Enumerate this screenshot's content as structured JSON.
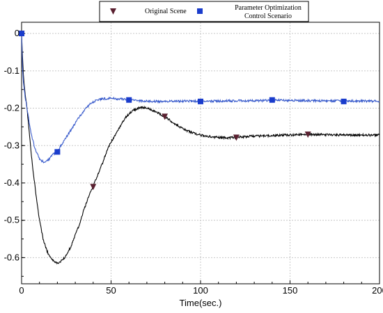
{
  "chart_data": {
    "type": "line",
    "title": "",
    "xlabel": "Time(sec.)",
    "ylabel": "",
    "xlim": [
      0,
      200
    ],
    "ylim": [
      -0.67,
      0.03
    ],
    "grid": true,
    "legend_position": "top",
    "x_ticks": [
      0,
      50,
      100,
      150,
      200
    ],
    "y_ticks": [
      0,
      -0.1,
      -0.2,
      -0.3,
      -0.4,
      -0.5,
      -0.6
    ],
    "x_tick_labels": [
      "0",
      "50",
      "100",
      "150",
      "200"
    ],
    "y_tick_labels": [
      "0",
      "-0.1",
      "-0.2",
      "-0.3",
      "-0.4",
      "-0.5",
      "-0.6"
    ],
    "series": [
      {
        "name": "Original Scene",
        "color": "#000000",
        "marker": "triangle-down",
        "marker_color": "#5a2030",
        "x": [
          0,
          0.5,
          1,
          1.5,
          2,
          3,
          4,
          5,
          6,
          8,
          10,
          12,
          14,
          16,
          18,
          20,
          22,
          24,
          26,
          28,
          30,
          32,
          35,
          38,
          40,
          42,
          45,
          48,
          50,
          52,
          55,
          58,
          60,
          62,
          65,
          68,
          70,
          73,
          76,
          80,
          85,
          90,
          95,
          100,
          105,
          110,
          115,
          120,
          125,
          130,
          135,
          140,
          145,
          150,
          160,
          170,
          180,
          190,
          200
        ],
        "y": [
          0,
          -0.06,
          -0.11,
          -0.14,
          -0.16,
          -0.2,
          -0.25,
          -0.3,
          -0.35,
          -0.43,
          -0.5,
          -0.55,
          -0.58,
          -0.6,
          -0.61,
          -0.615,
          -0.61,
          -0.6,
          -0.585,
          -0.565,
          -0.54,
          -0.515,
          -0.47,
          -0.43,
          -0.41,
          -0.385,
          -0.35,
          -0.31,
          -0.29,
          -0.275,
          -0.25,
          -0.225,
          -0.215,
          -0.207,
          -0.2,
          -0.198,
          -0.2,
          -0.205,
          -0.212,
          -0.222,
          -0.24,
          -0.255,
          -0.265,
          -0.272,
          -0.276,
          -0.278,
          -0.279,
          -0.278,
          -0.276,
          -0.275,
          -0.274,
          -0.273,
          -0.272,
          -0.272,
          -0.27,
          -0.271,
          -0.272,
          -0.272,
          -0.272
        ],
        "marker_x": [
          0,
          40,
          80,
          120,
          160
        ],
        "marker_y": [
          0,
          -0.41,
          -0.222,
          -0.278,
          -0.27
        ]
      },
      {
        "name": "Parameter Optimization Control Scenario",
        "legend_lines": [
          "Parameter Optimization",
          "Control Scenario"
        ],
        "color": "#3a5ccc",
        "marker": "square",
        "marker_color": "#1a3ccc",
        "x": [
          0,
          0.5,
          1,
          1.5,
          2,
          3,
          4,
          5,
          6,
          7,
          8,
          9,
          10,
          11,
          12,
          13,
          14,
          15,
          16,
          18,
          20,
          22,
          24,
          26,
          28,
          30,
          32,
          35,
          38,
          40,
          42,
          45,
          50,
          55,
          60,
          65,
          70,
          75,
          80,
          85,
          90,
          100,
          110,
          120,
          130,
          140,
          150,
          160,
          170,
          180,
          190,
          200
        ],
        "y": [
          0,
          -0.09,
          -0.13,
          -0.15,
          -0.17,
          -0.2,
          -0.23,
          -0.26,
          -0.28,
          -0.3,
          -0.315,
          -0.325,
          -0.335,
          -0.34,
          -0.343,
          -0.344,
          -0.342,
          -0.338,
          -0.333,
          -0.322,
          -0.317,
          -0.3,
          -0.285,
          -0.27,
          -0.255,
          -0.24,
          -0.225,
          -0.205,
          -0.19,
          -0.183,
          -0.178,
          -0.175,
          -0.174,
          -0.175,
          -0.178,
          -0.18,
          -0.181,
          -0.182,
          -0.182,
          -0.181,
          -0.181,
          -0.181,
          -0.181,
          -0.18,
          -0.18,
          -0.179,
          -0.179,
          -0.18,
          -0.18,
          -0.181,
          -0.181,
          -0.181
        ],
        "marker_x": [
          0,
          20,
          60,
          100,
          140,
          180
        ],
        "marker_y": [
          0,
          -0.317,
          -0.178,
          -0.182,
          -0.178,
          -0.182
        ]
      }
    ]
  }
}
